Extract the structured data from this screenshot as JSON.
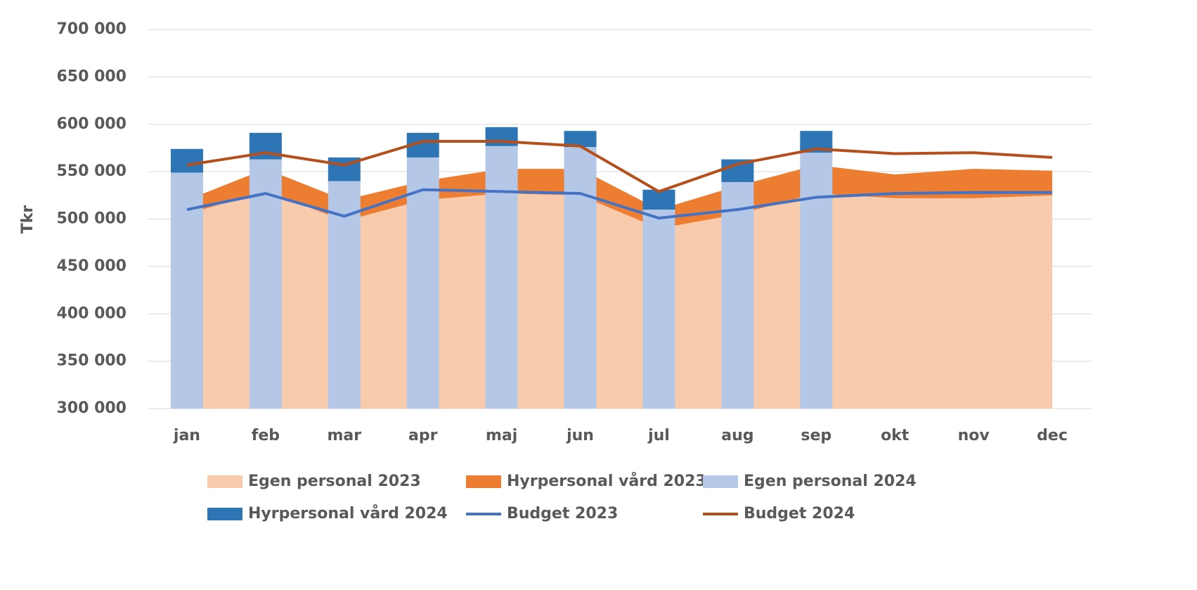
{
  "chart_data": {
    "type": "combo",
    "y_label": "Tkr",
    "categories": [
      "jan",
      "feb",
      "mar",
      "apr",
      "maj",
      "jun",
      "jul",
      "aug",
      "sep",
      "okt",
      "nov",
      "dec"
    ],
    "ylim": [
      300000,
      700000
    ],
    "yticks": [
      {
        "value": 300000,
        "label": "300 000"
      },
      {
        "value": 350000,
        "label": "350 000"
      },
      {
        "value": 400000,
        "label": "400 000"
      },
      {
        "value": 450000,
        "label": "450 000"
      },
      {
        "value": 500000,
        "label": "500 000"
      },
      {
        "value": 550000,
        "label": "550 000"
      },
      {
        "value": 600000,
        "label": "600 000"
      },
      {
        "value": 650000,
        "label": "650 000"
      },
      {
        "value": 700000,
        "label": "700 000"
      }
    ],
    "grid": true,
    "series": [
      {
        "name": "Egen personal 2023",
        "type": "area",
        "color": "#f8cbad",
        "values": [
          505000,
          530000,
          498000,
          520000,
          527000,
          525000,
          490000,
          505000,
          527000,
          522000,
          522000,
          525000
        ]
      },
      {
        "name": "Hyrpersonal vård 2023",
        "type": "area",
        "color": "#ed7d31",
        "values": [
          15000,
          23000,
          22000,
          20000,
          26000,
          28000,
          20000,
          30000,
          30000,
          25000,
          31000,
          26000
        ]
      },
      {
        "name": "Egen personal 2024",
        "type": "bar",
        "color": "#b4c7e7",
        "values": [
          549000,
          563000,
          540000,
          565000,
          577000,
          576000,
          510000,
          539000,
          570000,
          null,
          null,
          null
        ]
      },
      {
        "name": "Hyrpersonal vård 2024",
        "type": "bar",
        "color": "#2e75b6",
        "values": [
          25000,
          28000,
          25000,
          26000,
          20000,
          17000,
          21000,
          24000,
          23000,
          null,
          null,
          null
        ]
      },
      {
        "name": "Budget 2023",
        "type": "line",
        "color": "#4472c4",
        "values": [
          510000,
          527000,
          503000,
          531000,
          529000,
          527000,
          501000,
          510000,
          523000,
          527000,
          528000,
          528000
        ]
      },
      {
        "name": "Budget 2024",
        "type": "line",
        "color": "#b5501c",
        "values": [
          557000,
          570000,
          557000,
          582000,
          582000,
          577000,
          529000,
          558000,
          574000,
          569000,
          570000,
          565000
        ]
      }
    ]
  }
}
